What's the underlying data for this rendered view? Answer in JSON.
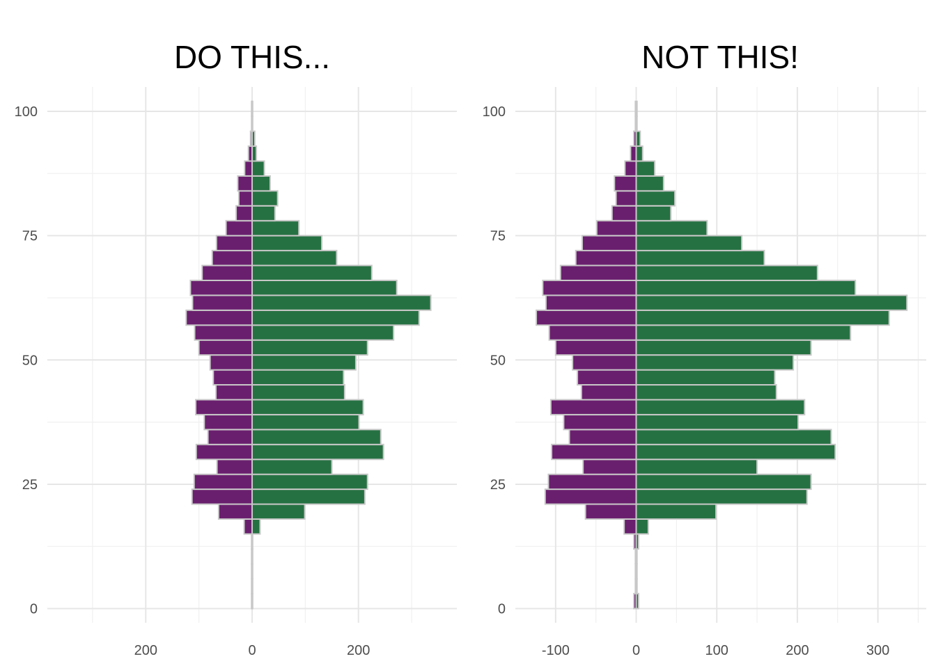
{
  "colors": {
    "left_side": "#6a1f6e",
    "right_side": "#267142",
    "bar_outline": "#c8c8c8",
    "grid_major": "#e6e6e6",
    "grid_minor": "#f0f0f0",
    "background": "#ffffff"
  },
  "chart_data": [
    {
      "type": "bar",
      "orientation": "horizontal",
      "layout": "population-pyramid",
      "title": "DO THIS...",
      "xlabel": "",
      "ylabel": "",
      "x_tick_labels": [
        "200",
        "0",
        "200"
      ],
      "x_tick_values": [
        -200,
        0,
        200
      ],
      "y_tick_labels": [
        "0",
        "25",
        "50",
        "75",
        "100"
      ],
      "y_tick_values": [
        0,
        25,
        50,
        75,
        100
      ],
      "xlim": [
        -385,
        385
      ],
      "ylim": [
        -2,
        105
      ],
      "grid": true,
      "bin_width": 3,
      "y": [
        0,
        3,
        6,
        9,
        12,
        15,
        18,
        21,
        24,
        27,
        30,
        33,
        36,
        39,
        42,
        45,
        48,
        51,
        54,
        57,
        60,
        63,
        66,
        69,
        72,
        75,
        78,
        81,
        84,
        87,
        90,
        93,
        96,
        99
      ],
      "series": [
        {
          "values": [
            -1,
            -1,
            -1,
            -1,
            -1,
            -15,
            -63,
            -113,
            -109,
            -66,
            -105,
            -83,
            -90,
            -106,
            -68,
            -73,
            -79,
            -100,
            -108,
            -124,
            -112,
            -116,
            -94,
            -75,
            -67,
            -49,
            -30,
            -25,
            -27,
            -14,
            -7,
            -3,
            -1,
            -1
          ]
        },
        {
          "values": [
            1,
            1,
            1,
            1,
            1,
            15,
            99,
            212,
            217,
            150,
            247,
            242,
            201,
            209,
            174,
            172,
            195,
            217,
            266,
            314,
            336,
            272,
            225,
            159,
            131,
            88,
            43,
            48,
            34,
            23,
            8,
            5,
            1,
            1
          ]
        }
      ]
    },
    {
      "type": "bar",
      "orientation": "horizontal",
      "layout": "diverging",
      "title": "NOT THIS!",
      "xlabel": "",
      "ylabel": "",
      "x_tick_labels": [
        "-100",
        "0",
        "100",
        "200",
        "300"
      ],
      "x_tick_values": [
        -100,
        0,
        100,
        200,
        300
      ],
      "y_tick_labels": [
        "0",
        "25",
        "50",
        "75",
        "100"
      ],
      "y_tick_values": [
        0,
        25,
        50,
        75,
        100
      ],
      "xlim": [
        -150,
        360
      ],
      "ylim": [
        -2,
        105
      ],
      "grid": true,
      "bin_width": 3,
      "y": [
        0,
        3,
        6,
        9,
        12,
        15,
        18,
        21,
        24,
        27,
        30,
        33,
        36,
        39,
        42,
        45,
        48,
        51,
        54,
        57,
        60,
        63,
        66,
        69,
        72,
        75,
        78,
        81,
        84,
        87,
        90,
        93,
        96,
        99
      ],
      "series": [
        {
          "values": [
            -3,
            -1,
            -1,
            -1,
            -3,
            -15,
            -63,
            -113,
            -109,
            -66,
            -105,
            -83,
            -90,
            -106,
            -68,
            -73,
            -79,
            -100,
            -108,
            -124,
            -112,
            -116,
            -94,
            -75,
            -67,
            -49,
            -30,
            -25,
            -27,
            -14,
            -7,
            -3,
            -1,
            -1
          ]
        },
        {
          "values": [
            3,
            1,
            1,
            1,
            3,
            15,
            99,
            212,
            217,
            150,
            247,
            242,
            201,
            209,
            174,
            172,
            195,
            217,
            266,
            314,
            336,
            272,
            225,
            159,
            131,
            88,
            43,
            48,
            34,
            23,
            8,
            5,
            1,
            1
          ]
        }
      ]
    }
  ]
}
